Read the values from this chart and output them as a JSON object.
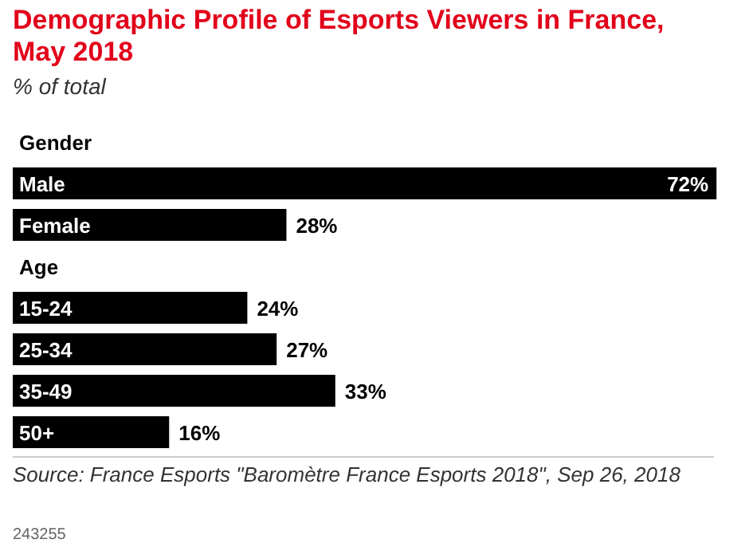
{
  "chart_data": {
    "type": "bar",
    "orientation": "horizontal",
    "title": "Demographic Profile of Esports Viewers in France, May 2018",
    "subtitle": "% of total",
    "categories": [
      "Gender",
      "Male",
      "Female",
      "Age",
      "15-24",
      "25-34",
      "35-49",
      "50+"
    ],
    "values": [
      null,
      72,
      28,
      null,
      24,
      27,
      33,
      16
    ],
    "value_labels": [
      null,
      "72%",
      "28%",
      null,
      "24%",
      "27%",
      "33%",
      "16%"
    ],
    "color": "#000000",
    "xlim": [
      0,
      75
    ],
    "annotations": [
      "Source: France Esports \"Baromètre France Esports 2018\", Sep 26, 2018",
      "243255"
    ]
  }
}
